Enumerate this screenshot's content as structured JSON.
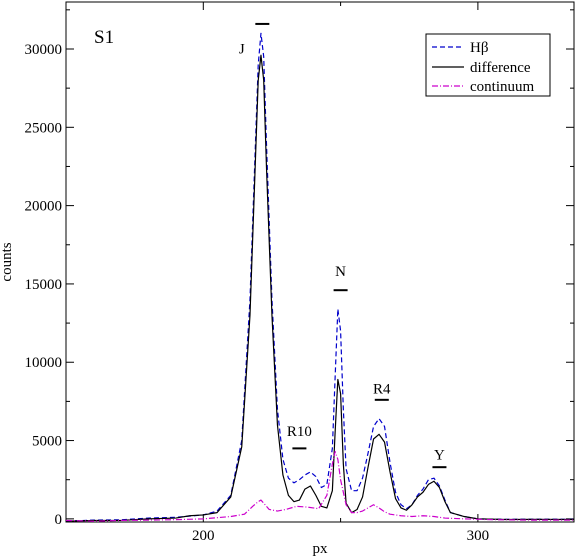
{
  "chart_data": {
    "type": "line",
    "panel_label": "S1",
    "xlabel": "px",
    "ylabel": "counts",
    "xlim": [
      150,
      335
    ],
    "ylim": [
      -200,
      33000
    ],
    "x_ticks": [
      200,
      300
    ],
    "y_ticks": [
      0,
      5000,
      10000,
      15000,
      20000,
      25000,
      30000
    ],
    "x_tick_labels": [
      "200",
      "300"
    ],
    "y_tick_labels": [
      "0",
      "5000",
      "10000",
      "15000",
      "20000",
      "25000",
      "30000"
    ],
    "grid": false,
    "legend_position": "top-right",
    "series": [
      {
        "name": "Hβ",
        "color": "#0000cc",
        "style": "dashed",
        "points": [
          [
            150,
            -150
          ],
          [
            160,
            -80
          ],
          [
            170,
            -60
          ],
          [
            180,
            50
          ],
          [
            190,
            100
          ],
          [
            200,
            250
          ],
          [
            205,
            500
          ],
          [
            210,
            1500
          ],
          [
            214,
            5000
          ],
          [
            217,
            14000
          ],
          [
            219,
            24000
          ],
          [
            220,
            29000
          ],
          [
            221,
            31000
          ],
          [
            222,
            29500
          ],
          [
            223,
            24000
          ],
          [
            225,
            14000
          ],
          [
            227,
            7000
          ],
          [
            229,
            3800
          ],
          [
            231,
            2600
          ],
          [
            233,
            2300
          ],
          [
            235,
            2500
          ],
          [
            237,
            2800
          ],
          [
            239,
            3000
          ],
          [
            241,
            2700
          ],
          [
            243,
            2000
          ],
          [
            245,
            2200
          ],
          [
            247,
            4500
          ],
          [
            248,
            9000
          ],
          [
            249,
            13400
          ],
          [
            250,
            12000
          ],
          [
            251,
            7000
          ],
          [
            252,
            3200
          ],
          [
            254,
            1800
          ],
          [
            256,
            1800
          ],
          [
            258,
            2600
          ],
          [
            260,
            4200
          ],
          [
            262,
            5900
          ],
          [
            264,
            6400
          ],
          [
            266,
            5900
          ],
          [
            268,
            3600
          ],
          [
            270,
            1700
          ],
          [
            272,
            900
          ],
          [
            274,
            650
          ],
          [
            276,
            900
          ],
          [
            278,
            1500
          ],
          [
            280,
            1900
          ],
          [
            282,
            2500
          ],
          [
            284,
            2600
          ],
          [
            286,
            2100
          ],
          [
            288,
            1200
          ],
          [
            290,
            400
          ],
          [
            295,
            150
          ],
          [
            300,
            0
          ],
          [
            310,
            -30
          ],
          [
            320,
            -20
          ],
          [
            335,
            -30
          ]
        ]
      },
      {
        "name": "difference",
        "color": "#000000",
        "style": "solid",
        "points": [
          [
            150,
            -150
          ],
          [
            160,
            -100
          ],
          [
            170,
            -100
          ],
          [
            180,
            0
          ],
          [
            190,
            50
          ],
          [
            195,
            200
          ],
          [
            200,
            250
          ],
          [
            205,
            400
          ],
          [
            210,
            1400
          ],
          [
            214,
            4600
          ],
          [
            217,
            13000
          ],
          [
            219,
            23000
          ],
          [
            220,
            28000
          ],
          [
            221,
            29600
          ],
          [
            222,
            28000
          ],
          [
            223,
            22500
          ],
          [
            225,
            13000
          ],
          [
            227,
            6000
          ],
          [
            229,
            2800
          ],
          [
            231,
            1500
          ],
          [
            233,
            1100
          ],
          [
            235,
            1200
          ],
          [
            237,
            1900
          ],
          [
            239,
            2100
          ],
          [
            241,
            1500
          ],
          [
            243,
            800
          ],
          [
            245,
            700
          ],
          [
            247,
            1800
          ],
          [
            248,
            5500
          ],
          [
            249,
            8900
          ],
          [
            250,
            8000
          ],
          [
            251,
            3500
          ],
          [
            252,
            1000
          ],
          [
            254,
            400
          ],
          [
            256,
            600
          ],
          [
            258,
            1400
          ],
          [
            260,
            3300
          ],
          [
            262,
            5100
          ],
          [
            264,
            5400
          ],
          [
            266,
            4900
          ],
          [
            268,
            3000
          ],
          [
            270,
            1300
          ],
          [
            272,
            700
          ],
          [
            274,
            550
          ],
          [
            276,
            900
          ],
          [
            278,
            1400
          ],
          [
            280,
            1700
          ],
          [
            282,
            2200
          ],
          [
            284,
            2400
          ],
          [
            286,
            2000
          ],
          [
            288,
            1100
          ],
          [
            290,
            400
          ],
          [
            295,
            150
          ],
          [
            300,
            0
          ],
          [
            310,
            -40
          ],
          [
            320,
            -30
          ],
          [
            335,
            -40
          ]
        ]
      },
      {
        "name": "continuum",
        "color": "#cc00cc",
        "style": "dashdot",
        "points": [
          [
            150,
            -100
          ],
          [
            160,
            -150
          ],
          [
            170,
            -100
          ],
          [
            180,
            -80
          ],
          [
            190,
            -50
          ],
          [
            200,
            0
          ],
          [
            210,
            150
          ],
          [
            215,
            300
          ],
          [
            218,
            800
          ],
          [
            220,
            1100
          ],
          [
            221,
            1200
          ],
          [
            222,
            1000
          ],
          [
            224,
            600
          ],
          [
            227,
            500
          ],
          [
            230,
            600
          ],
          [
            234,
            800
          ],
          [
            238,
            750
          ],
          [
            242,
            650
          ],
          [
            245,
            1500
          ],
          [
            247,
            3500
          ],
          [
            248,
            4300
          ],
          [
            249,
            3800
          ],
          [
            250,
            2500
          ],
          [
            252,
            900
          ],
          [
            254,
            400
          ],
          [
            256,
            400
          ],
          [
            258,
            500
          ],
          [
            260,
            700
          ],
          [
            262,
            900
          ],
          [
            264,
            700
          ],
          [
            266,
            450
          ],
          [
            268,
            300
          ],
          [
            272,
            200
          ],
          [
            276,
            150
          ],
          [
            280,
            200
          ],
          [
            284,
            150
          ],
          [
            288,
            50
          ],
          [
            295,
            0
          ],
          [
            305,
            -50
          ],
          [
            320,
            -80
          ],
          [
            335,
            -80
          ]
        ]
      }
    ],
    "peak_labels": [
      {
        "text": "J",
        "x": 214,
        "y": 29700
      },
      {
        "text": "R10",
        "x": 235,
        "y": 5300
      },
      {
        "text": "N",
        "x": 250,
        "y": 15500
      },
      {
        "text": "R4",
        "x": 265,
        "y": 8000
      },
      {
        "text": "Y",
        "x": 286,
        "y": 3800
      }
    ],
    "peak_markers": [
      {
        "x": 221.5,
        "y": 31600
      },
      {
        "x": 235,
        "y": 4500
      },
      {
        "x": 250,
        "y": 14600
      },
      {
        "x": 265,
        "y": 7600
      },
      {
        "x": 286,
        "y": 3300
      }
    ]
  }
}
